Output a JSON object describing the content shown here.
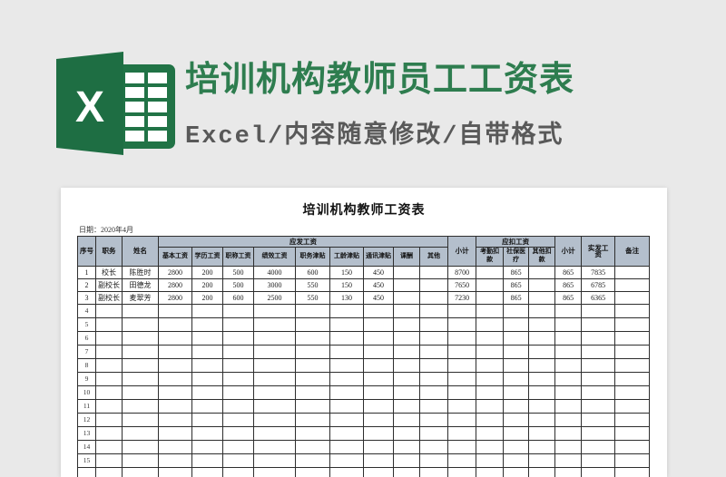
{
  "banner": {
    "title": "培训机构教师员工工资表",
    "subtitle": "Excel/内容随意修改/自带格式",
    "logo_letter": "X"
  },
  "sheet": {
    "title": "培训机构教师工资表",
    "date_label": "日期：2020年4月",
    "header": {
      "seq": "序号",
      "duty": "职务",
      "name": "姓名",
      "payable_group": "应发工资",
      "payable_cols": [
        "基本工资",
        "学历工资",
        "职称工资",
        "绩效工资",
        "职务津贴",
        "工龄津贴",
        "通讯津贴",
        "课酬",
        "其他"
      ],
      "subtotal1": "小计",
      "deduction_group": "应扣工资",
      "deduction_cols": [
        "考勤扣款",
        "社保医疗",
        "其他扣款"
      ],
      "subtotal2": "小计",
      "net": "实发工资",
      "remark": "备注"
    },
    "rows": [
      [
        "1",
        "校长",
        "陈胜时",
        "2800",
        "200",
        "500",
        "4000",
        "600",
        "150",
        "450",
        "",
        "",
        "8700",
        "",
        "865",
        "",
        "865",
        "7835",
        ""
      ],
      [
        "2",
        "副校长",
        "田德龙",
        "2800",
        "200",
        "500",
        "3000",
        "550",
        "150",
        "450",
        "",
        "",
        "7650",
        "",
        "865",
        "",
        "865",
        "6785",
        ""
      ],
      [
        "3",
        "副校长",
        "麦翠芳",
        "2800",
        "200",
        "600",
        "2500",
        "550",
        "130",
        "450",
        "",
        "",
        "7230",
        "",
        "865",
        "",
        "865",
        "6365",
        ""
      ]
    ],
    "empty_row_numbers": [
      "4",
      "5",
      "6",
      "7",
      "8",
      "9",
      "10",
      "11",
      "12",
      "13",
      "14",
      "15",
      ""
    ]
  },
  "colors": {
    "background": "#e9e9e9",
    "excel_green": "#217346",
    "excel_green_dark": "#1e6b41",
    "banner_title_green": "#2e7d4f",
    "banner_subtitle_gray": "#595959",
    "table_header_fill": "#b4bfcc",
    "panel_white": "#ffffff",
    "grid_line": "#2e2e2e"
  }
}
